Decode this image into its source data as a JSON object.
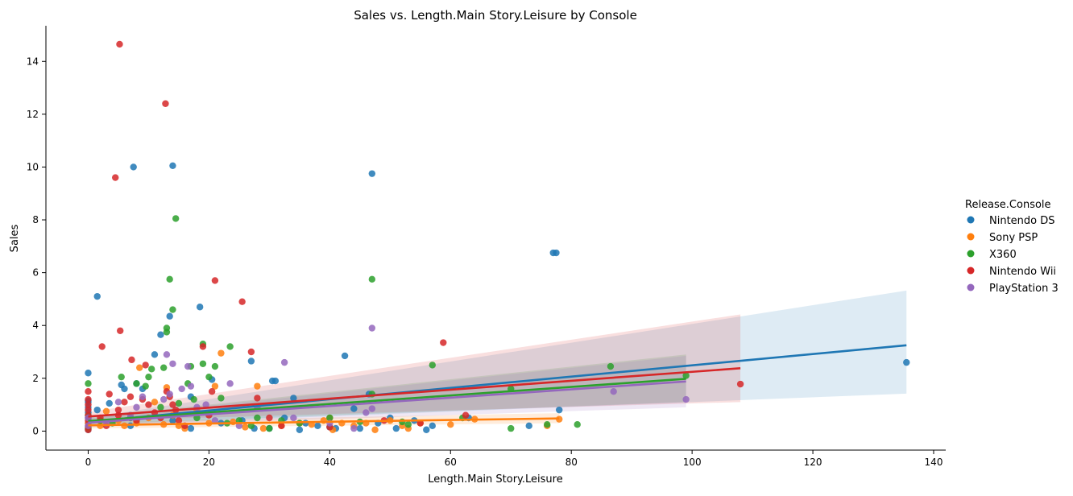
{
  "chart_data": {
    "type": "scatter",
    "title": "Sales vs. Length.Main Story.Leisure by Console",
    "xlabel": "Length.Main Story.Leisure",
    "ylabel": "Sales",
    "xlim": [
      -7,
      142
    ],
    "ylim": [
      -0.72,
      15.35
    ],
    "xticks": [
      0,
      20,
      40,
      60,
      80,
      100,
      120,
      140
    ],
    "yticks": [
      0,
      2,
      4,
      6,
      8,
      10,
      12,
      14
    ],
    "grid": false,
    "legend": {
      "title": "Release.Console",
      "placement": "right"
    },
    "series": [
      {
        "name": "Nintendo DS",
        "color": "#1f77b4",
        "points": [
          [
            0,
            2.2
          ],
          [
            0,
            1.15
          ],
          [
            0,
            1.1
          ],
          [
            0,
            0.9
          ],
          [
            0,
            0.7
          ],
          [
            0,
            0.5
          ],
          [
            0,
            0.3
          ],
          [
            0,
            0.15
          ],
          [
            0,
            0.05
          ],
          [
            1.5,
            5.1
          ],
          [
            1.5,
            0.8
          ],
          [
            3.5,
            1.05
          ],
          [
            5.5,
            1.75
          ],
          [
            6,
            1.6
          ],
          [
            7,
            0.2
          ],
          [
            7.5,
            10
          ],
          [
            8,
            1.8
          ],
          [
            9,
            1.6
          ],
          [
            11,
            2.9
          ],
          [
            12,
            3.65
          ],
          [
            13.5,
            4.35
          ],
          [
            14,
            10.05
          ],
          [
            14,
            0.4
          ],
          [
            17,
            1.3
          ],
          [
            17,
            0.1
          ],
          [
            18.5,
            4.7
          ],
          [
            20.5,
            1.95
          ],
          [
            22,
            0.3
          ],
          [
            25.5,
            0.4
          ],
          [
            27,
            2.65
          ],
          [
            27.5,
            0.1
          ],
          [
            30,
            0.1
          ],
          [
            30.5,
            1.9
          ],
          [
            31,
            1.9
          ],
          [
            32.5,
            0.5
          ],
          [
            34,
            1.25
          ],
          [
            35,
            0.05
          ],
          [
            36,
            0.3
          ],
          [
            38,
            0.2
          ],
          [
            40,
            0.15
          ],
          [
            41,
            0.1
          ],
          [
            42.5,
            2.85
          ],
          [
            44,
            0.85
          ],
          [
            45,
            0.1
          ],
          [
            46.5,
            1.4
          ],
          [
            47,
            9.75
          ],
          [
            48,
            0.3
          ],
          [
            50,
            0.5
          ],
          [
            51,
            0.1
          ],
          [
            54,
            0.4
          ],
          [
            56,
            0.05
          ],
          [
            57,
            0.2
          ],
          [
            63,
            0.5
          ],
          [
            73,
            0.2
          ],
          [
            77,
            6.75
          ],
          [
            77.5,
            6.75
          ],
          [
            78,
            0.8
          ],
          [
            135.5,
            2.6
          ]
        ],
        "trend": {
          "x": [
            0,
            135.5
          ],
          "y": [
            0.35,
            3.25
          ],
          "ci_low": [
            0.2,
            1.42
          ],
          "ci_high": [
            0.5,
            5.32
          ]
        }
      },
      {
        "name": "Sony PSP",
        "color": "#ff7f0e",
        "points": [
          [
            0,
            0.3
          ],
          [
            0,
            0.1
          ],
          [
            2,
            0.2
          ],
          [
            3,
            0.75
          ],
          [
            5,
            0.4
          ],
          [
            6,
            0.2
          ],
          [
            8,
            0.3
          ],
          [
            8.5,
            2.4
          ],
          [
            10,
            0.5
          ],
          [
            11,
            1.1
          ],
          [
            12.5,
            0.25
          ],
          [
            13,
            1.65
          ],
          [
            14,
            0.6
          ],
          [
            15,
            0.2
          ],
          [
            16,
            0.1
          ],
          [
            18,
            0.8
          ],
          [
            20,
            0.3
          ],
          [
            21,
            1.7
          ],
          [
            22,
            2.95
          ],
          [
            24,
            0.35
          ],
          [
            26,
            0.15
          ],
          [
            28,
            1.7
          ],
          [
            29,
            0.1
          ],
          [
            32,
            0.2
          ],
          [
            35,
            0.3
          ],
          [
            37,
            0.25
          ],
          [
            39,
            0.4
          ],
          [
            40,
            0.5
          ],
          [
            40.5,
            0.05
          ],
          [
            42,
            0.3
          ],
          [
            44,
            0.2
          ],
          [
            46,
            0.3
          ],
          [
            47.5,
            0.05
          ],
          [
            50,
            0.4
          ],
          [
            52,
            0.2
          ],
          [
            53,
            0.1
          ],
          [
            55,
            0.3
          ],
          [
            60,
            0.25
          ],
          [
            64,
            0.45
          ],
          [
            76,
            0.2
          ],
          [
            78,
            0.45
          ]
        ],
        "trend": {
          "x": [
            0,
            78
          ],
          "y": [
            0.22,
            0.48
          ],
          "ci_low": [
            0.1,
            0.3
          ],
          "ci_high": [
            0.35,
            0.68
          ]
        }
      },
      {
        "name": "X360",
        "color": "#2ca02c",
        "points": [
          [
            0,
            1.8
          ],
          [
            0,
            0.6
          ],
          [
            0,
            0.1
          ],
          [
            2,
            0.4
          ],
          [
            4,
            0.3
          ],
          [
            5.5,
            2.05
          ],
          [
            7,
            0.5
          ],
          [
            8,
            1.8
          ],
          [
            9.5,
            1.7
          ],
          [
            10,
            2.05
          ],
          [
            10.5,
            2.35
          ],
          [
            12,
            0.9
          ],
          [
            12.5,
            2.4
          ],
          [
            13,
            3.75
          ],
          [
            13,
            3.9
          ],
          [
            13.5,
            5.75
          ],
          [
            14,
            4.6
          ],
          [
            14.5,
            8.05
          ],
          [
            15,
            1.05
          ],
          [
            16.5,
            1.8
          ],
          [
            17,
            2.45
          ],
          [
            17.5,
            1.2
          ],
          [
            18,
            0.5
          ],
          [
            19,
            2.55
          ],
          [
            19,
            3.3
          ],
          [
            20,
            2.05
          ],
          [
            21,
            2.45
          ],
          [
            22,
            1.25
          ],
          [
            23,
            0.3
          ],
          [
            23.5,
            3.2
          ],
          [
            25,
            0.4
          ],
          [
            27,
            0.2
          ],
          [
            28,
            0.5
          ],
          [
            30,
            0.1
          ],
          [
            32,
            0.4
          ],
          [
            35,
            0.3
          ],
          [
            40,
            0.5
          ],
          [
            45,
            0.35
          ],
          [
            47,
            5.75
          ],
          [
            47,
            1.4
          ],
          [
            52,
            0.35
          ],
          [
            53,
            0.25
          ],
          [
            57,
            2.5
          ],
          [
            62,
            0.5
          ],
          [
            70,
            1.6
          ],
          [
            70,
            0.1
          ],
          [
            76,
            0.25
          ],
          [
            81,
            0.25
          ],
          [
            86.5,
            2.45
          ],
          [
            99,
            2.1
          ]
        ],
        "trend": {
          "x": [
            0,
            99
          ],
          "y": [
            0.38,
            1.98
          ],
          "ci_low": [
            0.25,
            1.1
          ],
          "ci_high": [
            0.52,
            2.9
          ]
        }
      },
      {
        "name": "Nintendo Wii",
        "color": "#d62728",
        "points": [
          [
            0,
            1.5
          ],
          [
            0,
            1.2
          ],
          [
            0,
            1.0
          ],
          [
            0,
            0.8
          ],
          [
            0,
            0.6
          ],
          [
            0,
            0.4
          ],
          [
            0,
            0.2
          ],
          [
            0,
            0.05
          ],
          [
            2,
            0.5
          ],
          [
            2.3,
            3.2
          ],
          [
            3,
            0.2
          ],
          [
            3.5,
            1.4
          ],
          [
            4.5,
            9.6
          ],
          [
            5,
            0.8
          ],
          [
            5,
            0.6
          ],
          [
            5.2,
            14.65
          ],
          [
            5.3,
            3.8
          ],
          [
            6,
            1.1
          ],
          [
            7,
            1.3
          ],
          [
            7.2,
            2.7
          ],
          [
            8,
            0.4
          ],
          [
            9,
            1.2
          ],
          [
            9.5,
            2.5
          ],
          [
            10,
            1.0
          ],
          [
            11,
            0.7
          ],
          [
            12,
            0.5
          ],
          [
            12.8,
            12.4
          ],
          [
            13,
            1.5
          ],
          [
            13.5,
            1.3
          ],
          [
            14,
            1.0
          ],
          [
            14.5,
            0.8
          ],
          [
            15,
            0.4
          ],
          [
            16,
            0.2
          ],
          [
            19,
            3.2
          ],
          [
            20,
            0.6
          ],
          [
            20.5,
            1.5
          ],
          [
            21,
            5.7
          ],
          [
            25.5,
            4.9
          ],
          [
            27,
            3.0
          ],
          [
            28,
            1.25
          ],
          [
            30,
            0.5
          ],
          [
            32,
            0.2
          ],
          [
            40,
            0.15
          ],
          [
            49,
            0.4
          ],
          [
            55,
            0.3
          ],
          [
            58.8,
            3.35
          ],
          [
            62.5,
            0.6
          ],
          [
            108,
            1.78
          ]
        ],
        "trend": {
          "x": [
            0,
            108
          ],
          "y": [
            0.55,
            2.38
          ],
          "ci_low": [
            0.38,
            1.1
          ],
          "ci_high": [
            0.72,
            4.42
          ]
        }
      },
      {
        "name": "PlayStation 3",
        "color": "#9467bd",
        "points": [
          [
            0,
            0.5
          ],
          [
            0,
            0.2
          ],
          [
            3,
            0.3
          ],
          [
            5,
            1.1
          ],
          [
            7,
            0.6
          ],
          [
            8,
            0.9
          ],
          [
            9,
            1.3
          ],
          [
            12.5,
            1.2
          ],
          [
            13,
            2.9
          ],
          [
            13.5,
            1.4
          ],
          [
            14,
            2.55
          ],
          [
            15.5,
            1.6
          ],
          [
            16.5,
            2.45
          ],
          [
            17,
            1.7
          ],
          [
            18,
            0.9
          ],
          [
            19.5,
            1.0
          ],
          [
            21,
            0.4
          ],
          [
            23.5,
            1.8
          ],
          [
            25,
            0.2
          ],
          [
            28,
            0.9
          ],
          [
            32.5,
            2.6
          ],
          [
            34,
            0.5
          ],
          [
            40,
            0.3
          ],
          [
            44,
            0.1
          ],
          [
            46,
            0.7
          ],
          [
            47,
            3.9
          ],
          [
            47,
            0.85
          ],
          [
            87,
            1.5
          ],
          [
            99,
            1.2
          ]
        ],
        "trend": {
          "x": [
            0,
            99
          ],
          "y": [
            0.32,
            1.88
          ],
          "ci_low": [
            0.15,
            0.9
          ],
          "ci_high": [
            0.48,
            2.85
          ]
        }
      }
    ]
  }
}
